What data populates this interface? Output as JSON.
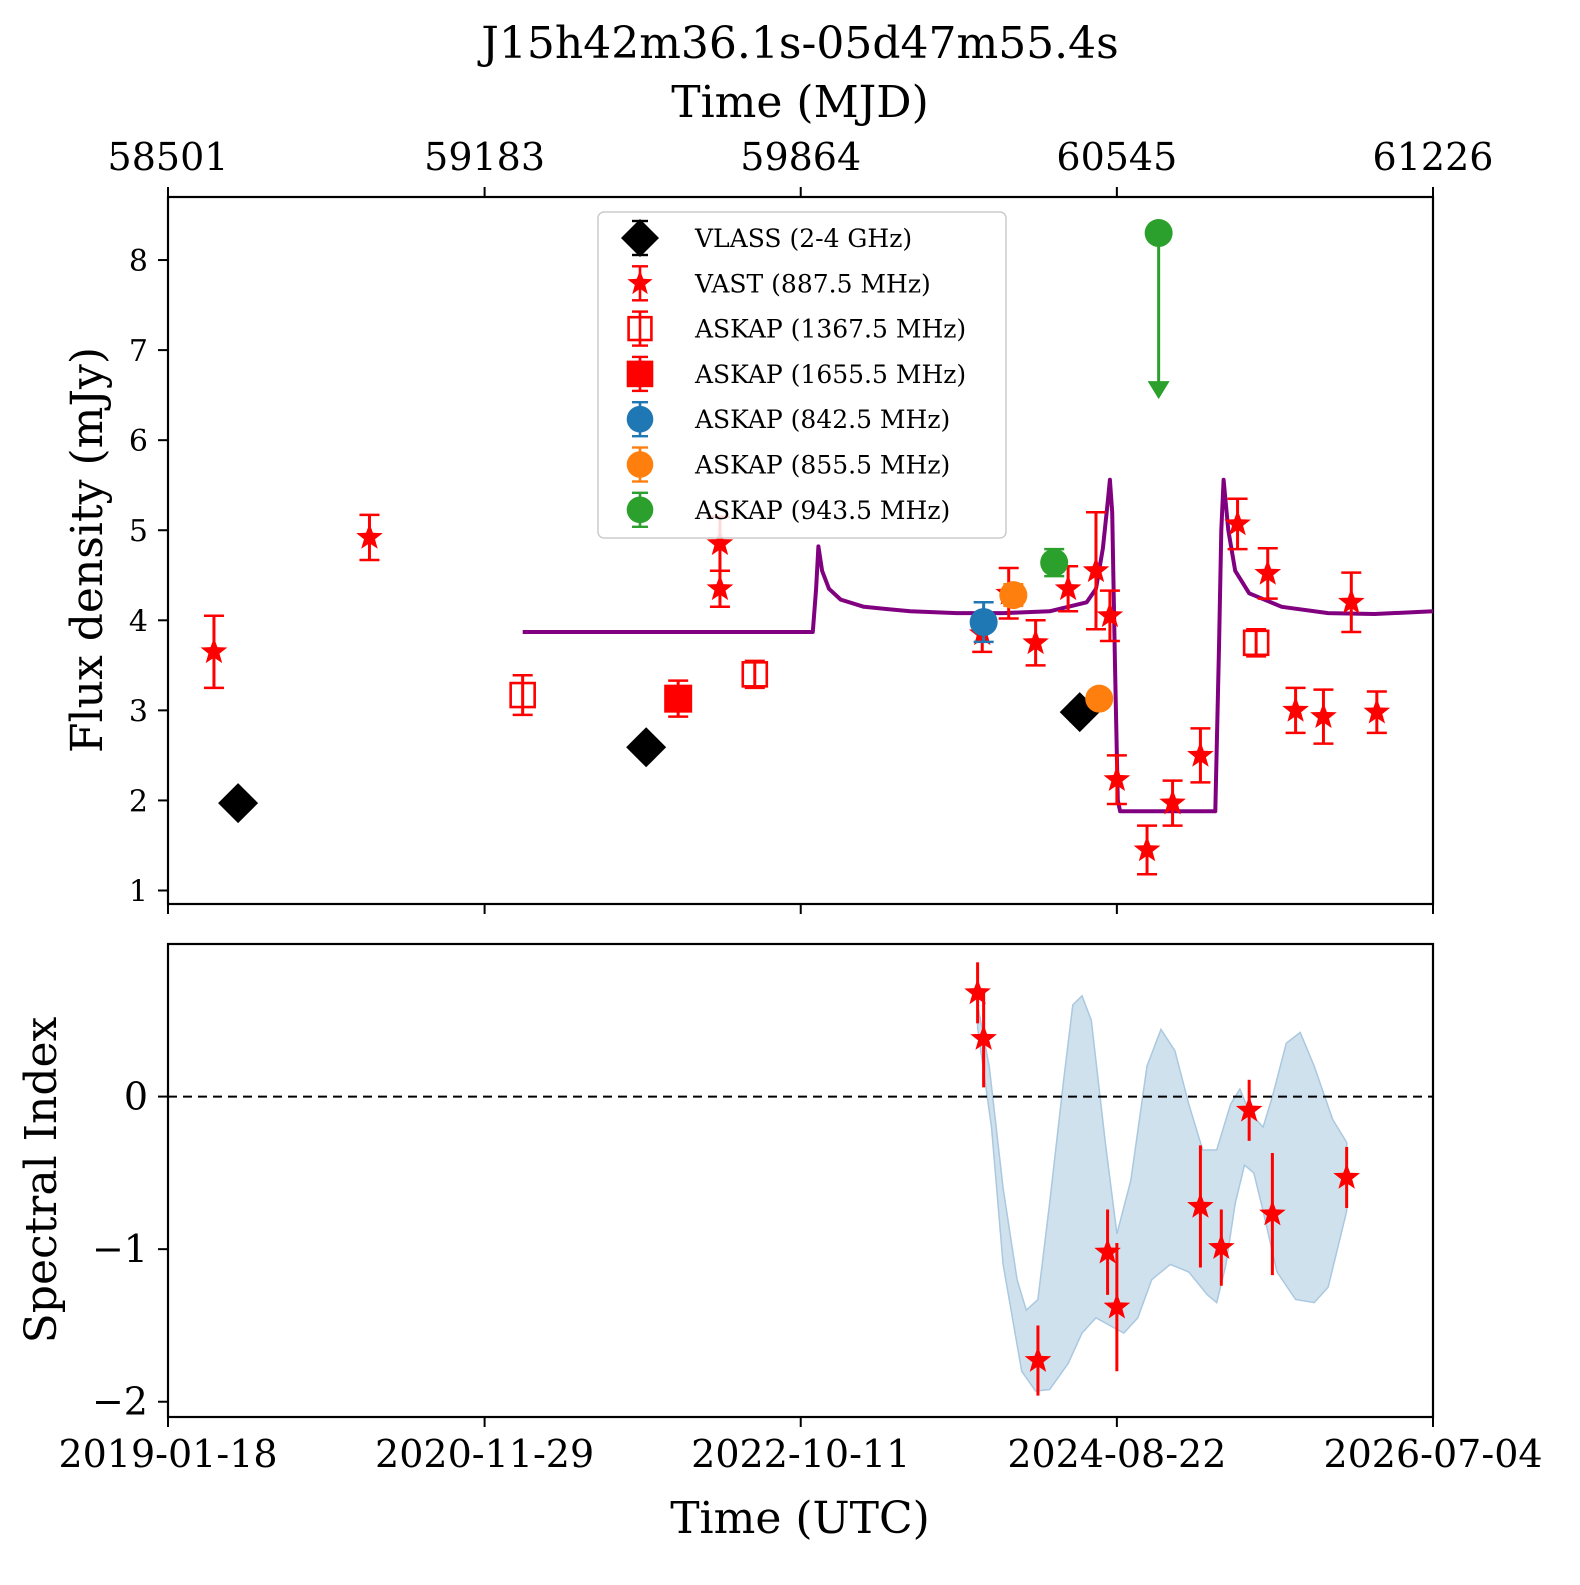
{
  "title": "J15h42m36.1s-05d47m55.4s",
  "top_axis": {
    "label": "Time (MJD)",
    "ticks": [
      {
        "mjd": 58501,
        "label": "58501"
      },
      {
        "mjd": 59183,
        "label": "59183"
      },
      {
        "mjd": 59864,
        "label": "59864"
      },
      {
        "mjd": 60545,
        "label": "60545"
      },
      {
        "mjd": 61226,
        "label": "61226"
      }
    ]
  },
  "bottom_axis": {
    "label": "Time (UTC)",
    "ticks": [
      {
        "mjd": 58501,
        "label": "2019-01-18"
      },
      {
        "mjd": 59183,
        "label": "2020-11-29"
      },
      {
        "mjd": 59864,
        "label": "2022-10-11"
      },
      {
        "mjd": 60545,
        "label": "2024-08-22"
      },
      {
        "mjd": 61226,
        "label": "2026-07-04"
      }
    ]
  },
  "xlim_mjd": [
    58501,
    61226
  ],
  "chart_data": [
    {
      "type": "scatter",
      "panel": "flux",
      "ylabel": "Flux density (mJy)",
      "ylim": [
        0.85,
        8.7
      ],
      "yticks": [
        1,
        2,
        3,
        4,
        5,
        6,
        7,
        8
      ],
      "legend_position": "upper-center",
      "series": [
        {
          "name": "VLASS (2-4 GHz)",
          "color": "#000000",
          "marker": "diamond",
          "points": [
            {
              "x": 58652,
              "y": 1.97,
              "err": 0.08
            },
            {
              "x": 59531,
              "y": 2.59,
              "err": 0.07
            },
            {
              "x": 60465,
              "y": 2.98,
              "err": 0.1
            }
          ]
        },
        {
          "name": "VAST (887.5 MHz)",
          "color": "#ff0000",
          "marker": "star",
          "points": [
            {
              "x": 58600,
              "y": 3.65,
              "err": 0.4
            },
            {
              "x": 58935,
              "y": 4.92,
              "err": 0.25
            },
            {
              "x": 59690,
              "y": 4.85,
              "err": 0.3
            },
            {
              "x": 59690,
              "y": 4.35,
              "err": 0.2
            },
            {
              "x": 60255,
              "y": 3.85,
              "err": 0.2
            },
            {
              "x": 60312,
              "y": 4.3,
              "err": 0.28
            },
            {
              "x": 60370,
              "y": 3.75,
              "err": 0.25
            },
            {
              "x": 60440,
              "y": 4.35,
              "err": 0.25
            },
            {
              "x": 60500,
              "y": 4.55,
              "err": 0.65
            },
            {
              "x": 60530,
              "y": 4.05,
              "err": 0.28
            },
            {
              "x": 60545,
              "y": 2.23,
              "err": 0.27
            },
            {
              "x": 60610,
              "y": 1.45,
              "err": 0.27
            },
            {
              "x": 60665,
              "y": 1.97,
              "err": 0.25
            },
            {
              "x": 60725,
              "y": 2.5,
              "err": 0.3
            },
            {
              "x": 60805,
              "y": 5.07,
              "err": 0.28
            },
            {
              "x": 60870,
              "y": 4.52,
              "err": 0.28
            },
            {
              "x": 60930,
              "y": 3.0,
              "err": 0.25
            },
            {
              "x": 60990,
              "y": 2.93,
              "err": 0.3
            },
            {
              "x": 61050,
              "y": 4.2,
              "err": 0.33
            },
            {
              "x": 61105,
              "y": 2.98,
              "err": 0.23
            }
          ]
        },
        {
          "name": "ASKAP (1367.5 MHz)",
          "color": "#ff0000",
          "marker": "open-square",
          "points": [
            {
              "x": 59265,
              "y": 3.17,
              "err": 0.22
            },
            {
              "x": 59765,
              "y": 3.4,
              "err": 0.15
            },
            {
              "x": 60845,
              "y": 3.75,
              "err": 0.15
            }
          ]
        },
        {
          "name": "ASKAP (1655.5 MHz)",
          "color": "#ff0000",
          "marker": "square",
          "points": [
            {
              "x": 59600,
              "y": 3.13,
              "err": 0.2
            }
          ]
        },
        {
          "name": "ASKAP (842.5 MHz)",
          "color": "#1f77b4",
          "marker": "circle",
          "points": [
            {
              "x": 60258,
              "y": 3.98,
              "err": 0.22
            }
          ]
        },
        {
          "name": "ASKAP (855.5 MHz)",
          "color": "#ff7f0e",
          "marker": "circle",
          "points": [
            {
              "x": 60322,
              "y": 4.28,
              "err": 0.12
            },
            {
              "x": 60507,
              "y": 3.13,
              "err": 0.08
            }
          ]
        },
        {
          "name": "ASKAP (943.5 MHz)",
          "color": "#2ca02c",
          "marker": "circle",
          "points": [
            {
              "x": 60410,
              "y": 4.64,
              "err": 0.15
            }
          ],
          "upper_limits": [
            {
              "x": 60635,
              "y": 8.3,
              "to": 6.5
            }
          ]
        }
      ],
      "model_curve": {
        "color": "#800080",
        "points": [
          [
            59265,
            3.87
          ],
          [
            59890,
            3.87
          ],
          [
            59897,
            4.35
          ],
          [
            59902,
            4.82
          ],
          [
            59910,
            4.55
          ],
          [
            59925,
            4.35
          ],
          [
            59950,
            4.23
          ],
          [
            60000,
            4.15
          ],
          [
            60100,
            4.1
          ],
          [
            60200,
            4.08
          ],
          [
            60300,
            4.08
          ],
          [
            60400,
            4.1
          ],
          [
            60480,
            4.2
          ],
          [
            60500,
            4.35
          ],
          [
            60515,
            4.8
          ],
          [
            60525,
            5.3
          ],
          [
            60530,
            5.56
          ],
          [
            60535,
            5.2
          ],
          [
            60541,
            3.5
          ],
          [
            60547,
            2.0
          ],
          [
            60552,
            1.88
          ],
          [
            60700,
            1.88
          ],
          [
            60757,
            1.88
          ],
          [
            60765,
            3.7
          ],
          [
            60770,
            5.0
          ],
          [
            60775,
            5.56
          ],
          [
            60785,
            5.0
          ],
          [
            60800,
            4.55
          ],
          [
            60830,
            4.3
          ],
          [
            60900,
            4.15
          ],
          [
            61000,
            4.08
          ],
          [
            61100,
            4.07
          ],
          [
            61226,
            4.1
          ]
        ]
      }
    },
    {
      "type": "scatter",
      "panel": "spectral_index",
      "ylabel": "Spectral Index",
      "ylim": [
        -2.1,
        1.0
      ],
      "yticks": [
        0,
        -1,
        -2
      ],
      "ytick_labels": [
        "0",
        "−1",
        "−2"
      ],
      "zero_line": {
        "y": 0,
        "style": "dashed"
      },
      "series": [
        {
          "name": "",
          "color": "#ff0000",
          "marker": "star",
          "points": [
            {
              "x": 60245,
              "y": 0.68,
              "err": 0.2
            },
            {
              "x": 60258,
              "y": 0.38,
              "err": 0.32
            },
            {
              "x": 60375,
              "y": -1.73,
              "err": 0.23
            },
            {
              "x": 60525,
              "y": -1.02,
              "err": 0.28
            },
            {
              "x": 60545,
              "y": -1.38,
              "err": 0.42
            },
            {
              "x": 60725,
              "y": -0.72,
              "err": 0.4
            },
            {
              "x": 60770,
              "y": -0.99,
              "err": 0.25
            },
            {
              "x": 60830,
              "y": -0.09,
              "err": 0.2
            },
            {
              "x": 60880,
              "y": -0.77,
              "err": 0.4
            },
            {
              "x": 61040,
              "y": -0.53,
              "err": 0.2
            }
          ]
        }
      ],
      "band": {
        "color": "#aac8e0",
        "upper": [
          [
            60245,
            0.6
          ],
          [
            60270,
            0.2
          ],
          [
            60300,
            -0.6
          ],
          [
            60330,
            -1.2
          ],
          [
            60350,
            -1.4
          ],
          [
            60375,
            -1.33
          ],
          [
            60400,
            -0.7
          ],
          [
            60430,
            0.1
          ],
          [
            60450,
            0.6
          ],
          [
            60470,
            0.66
          ],
          [
            60490,
            0.5
          ],
          [
            60520,
            -0.3
          ],
          [
            60545,
            -0.9
          ],
          [
            60575,
            -0.55
          ],
          [
            60610,
            0.2
          ],
          [
            60640,
            0.44
          ],
          [
            60670,
            0.3
          ],
          [
            60700,
            -0.05
          ],
          [
            60730,
            -0.35
          ],
          [
            60760,
            -0.35
          ],
          [
            60790,
            -0.05
          ],
          [
            60810,
            0.05
          ],
          [
            60830,
            -0.1
          ],
          [
            60860,
            -0.2
          ],
          [
            60880,
            0.0
          ],
          [
            60910,
            0.35
          ],
          [
            60940,
            0.42
          ],
          [
            60970,
            0.2
          ],
          [
            61010,
            -0.15
          ],
          [
            61040,
            -0.3
          ]
        ],
        "lower": [
          [
            61040,
            -0.75
          ],
          [
            61000,
            -1.25
          ],
          [
            60970,
            -1.35
          ],
          [
            60930,
            -1.33
          ],
          [
            60890,
            -1.15
          ],
          [
            60860,
            -0.75
          ],
          [
            60840,
            -0.5
          ],
          [
            60820,
            -0.45
          ],
          [
            60800,
            -0.7
          ],
          [
            60780,
            -1.1
          ],
          [
            60760,
            -1.35
          ],
          [
            60740,
            -1.3
          ],
          [
            60700,
            -1.15
          ],
          [
            60660,
            -1.1
          ],
          [
            60620,
            -1.2
          ],
          [
            60590,
            -1.45
          ],
          [
            60560,
            -1.55
          ],
          [
            60530,
            -1.5
          ],
          [
            60500,
            -1.45
          ],
          [
            60470,
            -1.55
          ],
          [
            60440,
            -1.75
          ],
          [
            60400,
            -1.92
          ],
          [
            60370,
            -1.93
          ],
          [
            60340,
            -1.8
          ],
          [
            60300,
            -1.1
          ],
          [
            60275,
            -0.2
          ],
          [
            60245,
            0.45
          ]
        ]
      }
    }
  ]
}
